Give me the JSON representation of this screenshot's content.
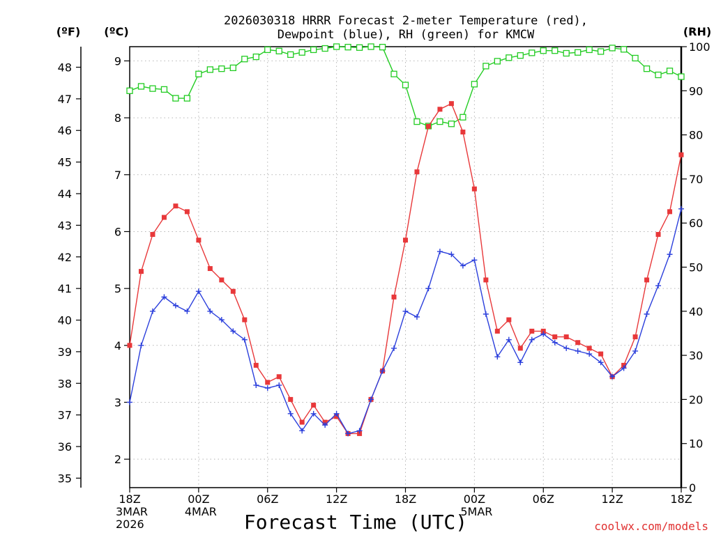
{
  "chart_data": {
    "type": "line",
    "title": [
      "2026030318 HRRR Forecast 2-meter Temperature (red),",
      "Dewpoint (blue), RH (green) for KMCW"
    ],
    "xlabel": "Forecast Time (UTC)",
    "unit_labels": {
      "fahrenheit": "(ºF)",
      "celsius": "(ºC)",
      "rh": "(RH)"
    },
    "credit": "coolwx.com/models",
    "x_ticks": [
      {
        "hour": 0,
        "lines": [
          "18Z",
          "3MAR",
          "2026"
        ]
      },
      {
        "hour": 6,
        "lines": [
          "00Z",
          "4MAR"
        ]
      },
      {
        "hour": 12,
        "lines": [
          "06Z"
        ]
      },
      {
        "hour": 18,
        "lines": [
          "12Z"
        ]
      },
      {
        "hour": 24,
        "lines": [
          "18Z"
        ]
      },
      {
        "hour": 30,
        "lines": [
          "00Z",
          "5MAR"
        ]
      },
      {
        "hour": 36,
        "lines": [
          "06Z"
        ]
      },
      {
        "hour": 42,
        "lines": [
          "12Z"
        ]
      },
      {
        "hour": 48,
        "lines": [
          "18Z"
        ]
      }
    ],
    "xlim": [
      0,
      48
    ],
    "celsius_axis": {
      "ylim": [
        1.5,
        9.25
      ],
      "ticks": [
        2,
        3,
        4,
        5,
        6,
        7,
        8,
        9
      ]
    },
    "fahrenheit_axis": {
      "ticks": [
        35,
        36,
        37,
        38,
        39,
        40,
        41,
        42,
        43,
        44,
        45,
        46,
        47,
        48
      ]
    },
    "rh_axis": {
      "ylim": [
        0,
        100
      ],
      "ticks": [
        0,
        10,
        20,
        30,
        40,
        50,
        60,
        70,
        80,
        90,
        100
      ]
    },
    "grid": true,
    "series": [
      {
        "name": "Temperature",
        "unit": "°C",
        "color": "#e8383a",
        "marker": "filled-square",
        "values": [
          4.0,
          5.3,
          5.95,
          6.25,
          6.45,
          6.35,
          5.85,
          5.35,
          5.15,
          4.95,
          4.45,
          3.65,
          3.35,
          3.45,
          3.05,
          2.65,
          2.95,
          2.65,
          2.75,
          2.45,
          2.45,
          3.05,
          3.55,
          4.85,
          5.85,
          7.05,
          7.85,
          8.15,
          8.25,
          7.75,
          6.75,
          5.15,
          4.25,
          4.45,
          3.95,
          4.25,
          4.25,
          4.15,
          4.15,
          4.05,
          3.95,
          3.85,
          3.45,
          3.65,
          4.15,
          5.15,
          5.95,
          6.35,
          7.35
        ]
      },
      {
        "name": "Dewpoint",
        "unit": "°C",
        "color": "#2b3fdc",
        "marker": "plus",
        "values": [
          3.0,
          4.0,
          4.6,
          4.85,
          4.7,
          4.6,
          4.95,
          4.6,
          4.45,
          4.25,
          4.1,
          3.3,
          3.25,
          3.3,
          2.8,
          2.5,
          2.8,
          2.6,
          2.8,
          2.45,
          2.5,
          3.05,
          3.55,
          3.95,
          4.6,
          4.5,
          5.0,
          5.65,
          5.6,
          5.4,
          5.5,
          4.55,
          3.8,
          4.1,
          3.7,
          4.1,
          4.2,
          4.05,
          3.95,
          3.9,
          3.85,
          3.7,
          3.45,
          3.6,
          3.9,
          4.55,
          5.05,
          5.6,
          6.4
        ]
      },
      {
        "name": "RH",
        "unit": "%",
        "color": "#22cc22",
        "marker": "open-square",
        "values": [
          90,
          91,
          90.5,
          90.3,
          88.3,
          88.3,
          93.8,
          94.8,
          95,
          95.2,
          97.2,
          97.7,
          99.3,
          99,
          98.2,
          98.7,
          99.3,
          99.6,
          100,
          99.9,
          99.8,
          100,
          99.9,
          93.8,
          91.3,
          83,
          82,
          83,
          82.5,
          84,
          91.5,
          95.6,
          96.7,
          97.5,
          98,
          98.6,
          99.1,
          99.1,
          98.5,
          98.7,
          99.3,
          98.9,
          99.7,
          99.4,
          97.4,
          95,
          93.6,
          94.5,
          93.2
        ]
      }
    ]
  }
}
